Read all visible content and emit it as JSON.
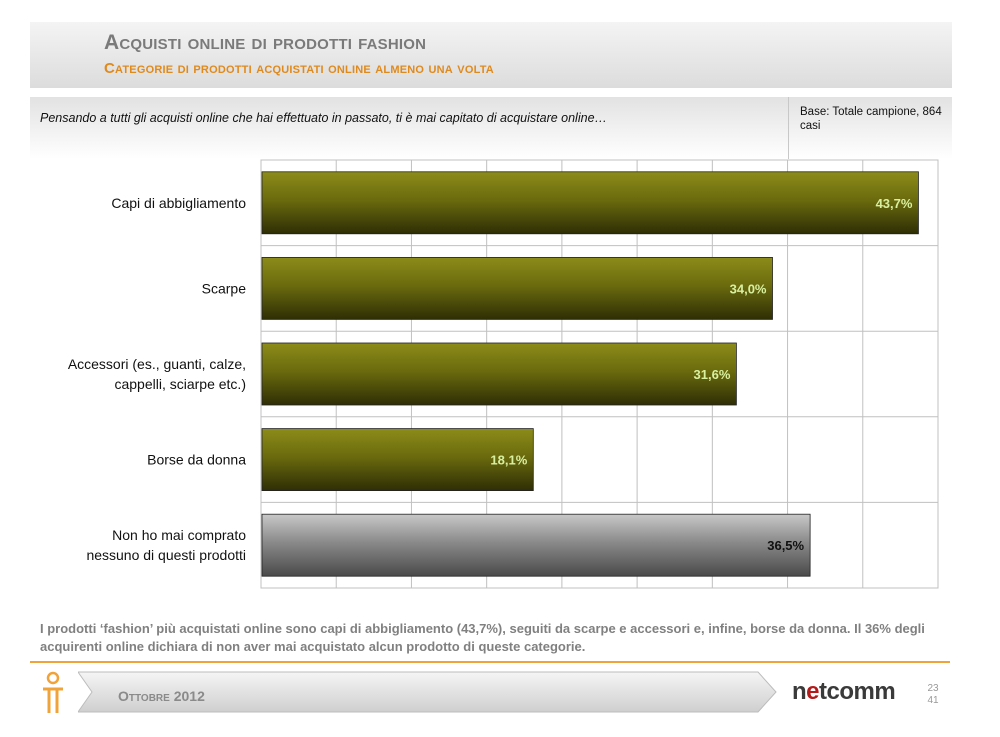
{
  "header": {
    "title": "Acquisti online di prodotti fashion",
    "subtitle": "Categorie di prodotti acquistati online almeno una volta"
  },
  "question": {
    "text": "Pensando a tutti gli acquisti online che hai effettuato in passato, ti è mai capitato di acquistare online…",
    "base_note": "Base: Totale campione, 864 casi"
  },
  "chart_data": {
    "type": "bar",
    "orientation": "horizontal",
    "categories": [
      [
        "Capi di abbigliamento"
      ],
      [
        "Scarpe"
      ],
      [
        "Accessori (es., guanti, calze,",
        "cappelli, sciarpe etc.)"
      ],
      [
        "Borse da donna"
      ],
      [
        "Non ho mai comprato",
        "nessuno di questi prodotti"
      ]
    ],
    "values": [
      43.7,
      34.0,
      31.6,
      18.1,
      36.5
    ],
    "value_labels": [
      "43,7%",
      "34,0%",
      "31,6%",
      "18,1%",
      "36,5%"
    ],
    "xlim": [
      0,
      45
    ],
    "grid": true,
    "legend": "none",
    "colors": {
      "bar": "#6b6b0e",
      "bar_highlight": "#8c8c1a",
      "bar_shadow": "#2e2e05",
      "bar_other": "#8a8a8a",
      "value_label": "#d8f0a0",
      "value_label_other": "#111111",
      "grid": "#c0c0c0"
    }
  },
  "footer": {
    "summary": "I prodotti ‘fashion’ più acquistati online sono capi di abbigliamento (43,7%), seguiti da scarpe e accessori e, infine, borse da donna. Il 36% degli acquirenti online dichiara di non aver mai acquistato alcun prodotto di queste categorie.",
    "date": "Ottobre 2012",
    "brand_pre": "n",
    "brand_accent": "e",
    "brand_post": "tcomm",
    "page_current": "23",
    "page_total": "41"
  }
}
